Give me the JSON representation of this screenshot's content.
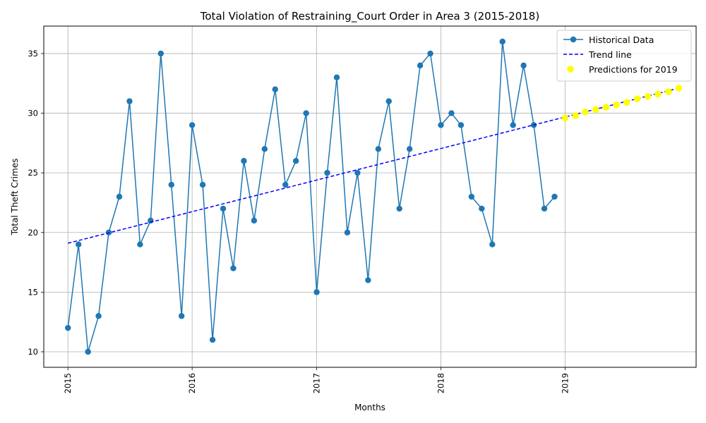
{
  "chart_data": {
    "type": "line",
    "title": "Total Violation of Restraining_Court Order in Area 3 (2015-2018)",
    "xlabel": "Months",
    "ylabel": "Total Theft Crimes",
    "x_ticks": [
      "2015",
      "2016",
      "2017",
      "2018",
      "2019"
    ],
    "y_ticks": [
      10,
      15,
      20,
      25,
      30,
      35
    ],
    "xlim": [
      "2014-10-22",
      "2020-01-21"
    ],
    "ylim": [
      8.7,
      37.3
    ],
    "grid": true,
    "legend_position": "top-right",
    "series": [
      {
        "name": "Historical Data",
        "style": "line-with-circle-markers",
        "color": "#1f77b4",
        "x": [
          "2015-01",
          "2015-02",
          "2015-03",
          "2015-04",
          "2015-05",
          "2015-06",
          "2015-07",
          "2015-08",
          "2015-09",
          "2015-10",
          "2015-11",
          "2015-12",
          "2016-01",
          "2016-02",
          "2016-03",
          "2016-04",
          "2016-05",
          "2016-06",
          "2016-07",
          "2016-08",
          "2016-09",
          "2016-10",
          "2016-11",
          "2016-12",
          "2017-01",
          "2017-02",
          "2017-03",
          "2017-04",
          "2017-05",
          "2017-06",
          "2017-07",
          "2017-08",
          "2017-09",
          "2017-10",
          "2017-11",
          "2017-12",
          "2018-01",
          "2018-02",
          "2018-03",
          "2018-04",
          "2018-05",
          "2018-06",
          "2018-07",
          "2018-08",
          "2018-09",
          "2018-10",
          "2018-11",
          "2018-12"
        ],
        "values": [
          12,
          19,
          10,
          13,
          20,
          23,
          31,
          19,
          21,
          35,
          24,
          13,
          29,
          24,
          11,
          22,
          17,
          26,
          21,
          27,
          32,
          24,
          26,
          30,
          15,
          25,
          33,
          20,
          25,
          16,
          27,
          31,
          22,
          27,
          34,
          35,
          29,
          30,
          29,
          23,
          22,
          19,
          36,
          29,
          34,
          29,
          22,
          23
        ]
      },
      {
        "name": "Trend line",
        "style": "dashed-line",
        "color": "#0000ff",
        "x": [
          "2015-01",
          "2019-12"
        ],
        "values": [
          19.1,
          32.1
        ]
      },
      {
        "name": "Predictions for 2019",
        "style": "scatter",
        "color": "#ffff00",
        "x": [
          "2019-01",
          "2019-02",
          "2019-03",
          "2019-04",
          "2019-05",
          "2019-06",
          "2019-07",
          "2019-08",
          "2019-09",
          "2019-10",
          "2019-11",
          "2019-12"
        ],
        "values": [
          29.6,
          29.8,
          30.1,
          30.3,
          30.5,
          30.7,
          30.9,
          31.2,
          31.4,
          31.6,
          31.8,
          32.1
        ]
      }
    ]
  }
}
